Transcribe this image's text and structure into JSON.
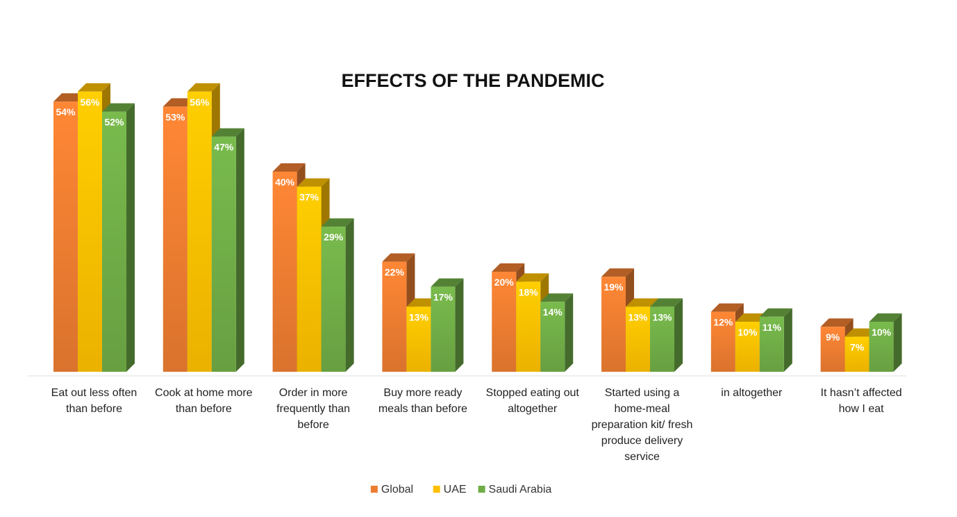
{
  "chart_data": {
    "type": "bar3d",
    "title": "EFFECTS OF THE PANDEMIC",
    "categories": [
      "Eat out less often than before",
      "Cook at home more than before",
      "Order in more frequently than before",
      "Buy more ready meals than before",
      "Stopped eating out altogether",
      "Started using a home-meal preparation kit/ fresh produce delivery service",
      "in altogether",
      "It hasn’t affected how I eat"
    ],
    "series": [
      {
        "name": "Global",
        "color": "#ed7d31",
        "values": [
          54,
          53,
          40,
          22,
          20,
          19,
          12,
          9
        ],
        "value_labels": [
          "54%",
          "53%",
          "40%",
          "22%",
          "20%",
          "19%",
          "12%",
          "9%"
        ]
      },
      {
        "name": "UAE",
        "color": "#ffc000",
        "values": [
          56,
          56,
          37,
          13,
          18,
          13,
          10,
          7
        ],
        "value_labels": [
          "56%",
          "56%",
          "37%",
          "13%",
          "18%",
          "13%",
          "10%",
          "7%"
        ]
      },
      {
        "name": "Saudi Arabia",
        "color": "#70ad47",
        "values": [
          52,
          47,
          29,
          17,
          14,
          13,
          11,
          10
        ],
        "value_labels": [
          "52%",
          "47%",
          "29%",
          "17%",
          "14%",
          "13%",
          "11%",
          "10%"
        ]
      }
    ],
    "legend": "bottom"
  }
}
